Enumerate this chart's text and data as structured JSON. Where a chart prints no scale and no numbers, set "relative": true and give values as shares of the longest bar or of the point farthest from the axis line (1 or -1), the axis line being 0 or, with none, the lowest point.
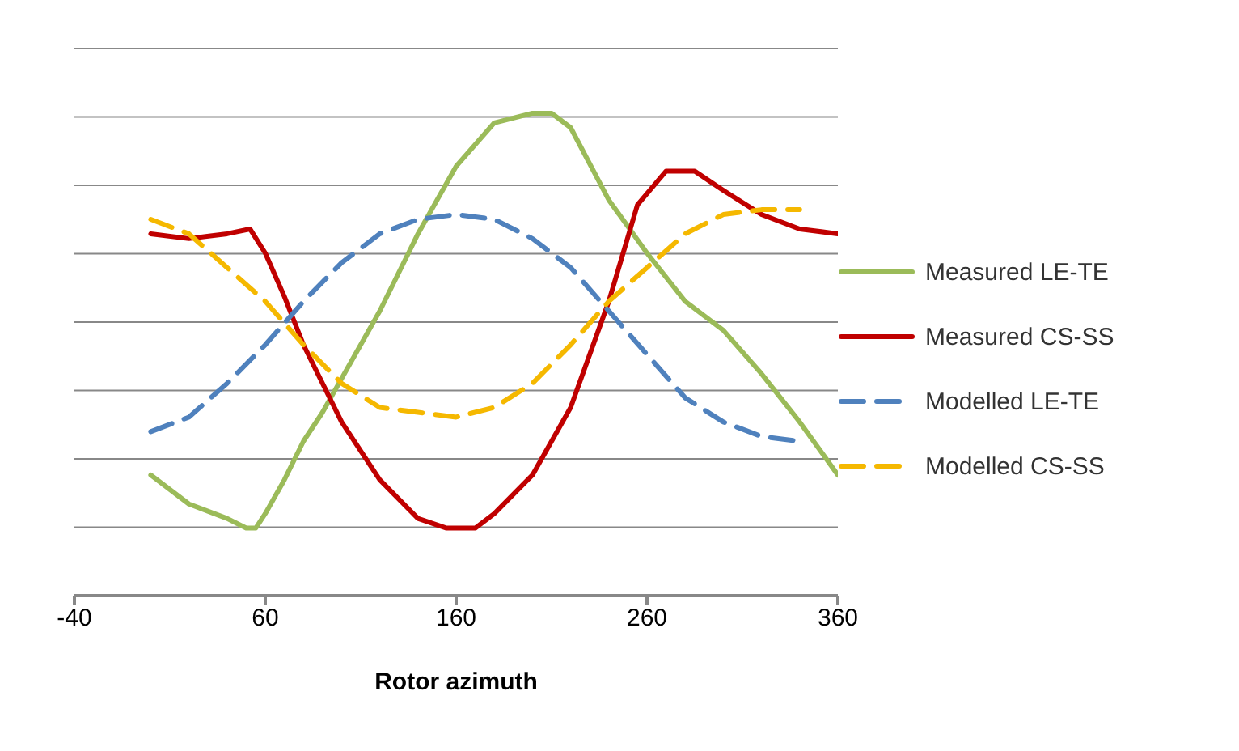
{
  "chart_data": {
    "type": "line",
    "relative": true,
    "xlabel": "Rotor azimuth",
    "xlim": [
      -40,
      360
    ],
    "xticks": [
      -40,
      60,
      160,
      260,
      360
    ],
    "grid": "y",
    "legend": "right",
    "marker": "none",
    "series": [
      {
        "name": "Measured LE-TE",
        "color": "#9bbb59",
        "line_style": "solid",
        "x": [
          0,
          20,
          40,
          50,
          55,
          60,
          70,
          80,
          90,
          100,
          120,
          140,
          160,
          180,
          200,
          210,
          220,
          240,
          260,
          280,
          300,
          320,
          340,
          360
        ],
        "values": [
          0.25,
          0.19,
          0.16,
          0.14,
          0.14,
          0.17,
          0.24,
          0.32,
          0.38,
          0.45,
          0.59,
          0.75,
          0.89,
          0.98,
          1,
          1,
          0.97,
          0.82,
          0.71,
          0.61,
          0.55,
          0.46,
          0.36,
          0.25
        ]
      },
      {
        "name": "Measured CS-SS",
        "color": "#c00000",
        "line_style": "solid",
        "x": [
          0,
          20,
          40,
          52,
          60,
          70,
          80,
          100,
          120,
          140,
          155,
          170,
          180,
          200,
          220,
          240,
          255,
          270,
          285,
          300,
          320,
          340,
          360
        ],
        "values": [
          0.75,
          0.74,
          0.75,
          0.76,
          0.71,
          0.62,
          0.52,
          0.36,
          0.24,
          0.16,
          0.14,
          0.14,
          0.17,
          0.25,
          0.39,
          0.61,
          0.81,
          0.88,
          0.88,
          0.84,
          0.79,
          0.76,
          0.75
        ]
      },
      {
        "name": "Modelled LE-TE",
        "color": "#4f81bd",
        "line_style": "dashed",
        "x": [
          0,
          20,
          40,
          60,
          80,
          100,
          120,
          140,
          160,
          180,
          200,
          220,
          240,
          260,
          280,
          300,
          320,
          340
        ],
        "values": [
          0.34,
          0.37,
          0.44,
          0.52,
          0.61,
          0.69,
          0.75,
          0.78,
          0.79,
          0.78,
          0.74,
          0.68,
          0.59,
          0.5,
          0.41,
          0.36,
          0.33,
          0.32
        ]
      },
      {
        "name": "Modelled CS-SS",
        "color": "#f5b800",
        "line_style": "dashed",
        "x": [
          0,
          20,
          40,
          60,
          80,
          100,
          120,
          140,
          160,
          180,
          200,
          220,
          240,
          260,
          280,
          300,
          320,
          340
        ],
        "values": [
          0.78,
          0.75,
          0.68,
          0.61,
          0.52,
          0.44,
          0.39,
          0.38,
          0.37,
          0.39,
          0.44,
          0.52,
          0.61,
          0.68,
          0.75,
          0.79,
          0.8,
          0.8
        ]
      }
    ]
  }
}
